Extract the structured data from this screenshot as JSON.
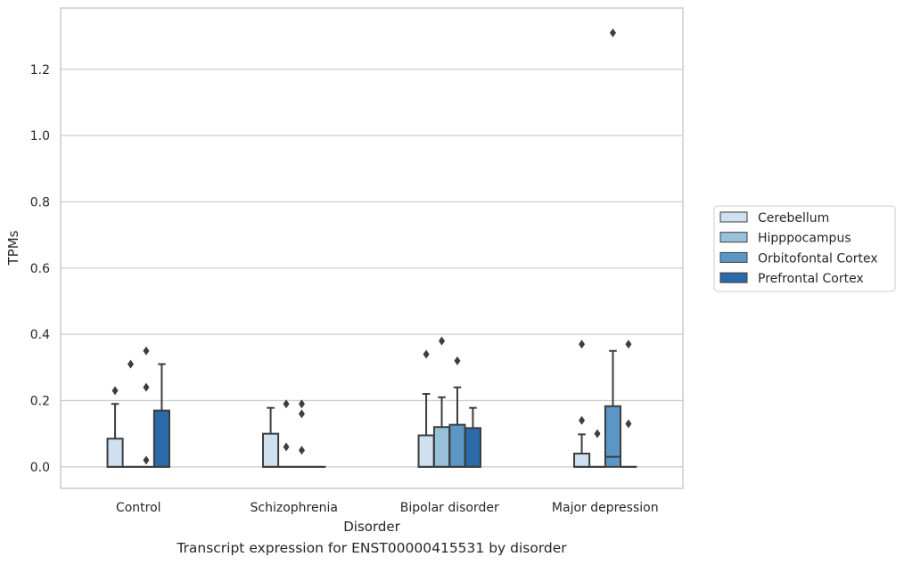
{
  "chart_data": {
    "type": "box",
    "title": "",
    "xlabel": "Disorder",
    "ylabel": "TPMs",
    "caption": "Transcript expression for ENST00000415531 by disorder",
    "categories": [
      "Control",
      "Schizophrenia",
      "Bipolar disorder",
      "Major depression"
    ],
    "ylim": [
      -0.065,
      1.385
    ],
    "yticks": [
      "0.0",
      "0.2",
      "0.4",
      "0.6",
      "0.8",
      "1.0",
      "1.2"
    ],
    "grid": "horizontal",
    "legend_position": "right",
    "series": [
      {
        "name": "Cerebellum",
        "color": "#cfe0f0",
        "boxes": [
          {
            "q1": 0,
            "median": 0,
            "q3": 0.085,
            "whisker_low": 0,
            "whisker_high": 0.19,
            "outliers": [
              0.23
            ]
          },
          {
            "q1": 0,
            "median": 0,
            "q3": 0.1,
            "whisker_low": 0,
            "whisker_high": 0.178,
            "outliers": []
          },
          {
            "q1": 0,
            "median": 0,
            "q3": 0.095,
            "whisker_low": 0,
            "whisker_high": 0.22,
            "outliers": [
              0.34
            ]
          },
          {
            "q1": 0,
            "median": 0,
            "q3": 0.04,
            "whisker_low": 0,
            "whisker_high": 0.098,
            "outliers": [
              0.14,
              0.37
            ]
          }
        ]
      },
      {
        "name": "Hipppocampus",
        "color": "#98c1dc",
        "boxes": [
          {
            "q1": 0,
            "median": 0,
            "q3": 0,
            "whisker_low": 0,
            "whisker_high": 0,
            "outliers": [
              0.31
            ]
          },
          {
            "q1": 0,
            "median": 0,
            "q3": 0,
            "whisker_low": 0,
            "whisker_high": 0,
            "outliers": [
              0.06,
              0.19
            ]
          },
          {
            "q1": 0,
            "median": 0,
            "q3": 0.12,
            "whisker_low": 0,
            "whisker_high": 0.21,
            "outliers": [
              0.38
            ]
          },
          {
            "q1": 0,
            "median": 0,
            "q3": 0,
            "whisker_low": 0,
            "whisker_high": 0,
            "outliers": [
              0.1
            ]
          }
        ]
      },
      {
        "name": "Orbitofontal Cortex",
        "color": "#5b97c6",
        "boxes": [
          {
            "q1": 0,
            "median": 0,
            "q3": 0,
            "whisker_low": 0,
            "whisker_high": 0,
            "outliers": [
              0.02,
              0.24,
              0.35
            ]
          },
          {
            "q1": 0,
            "median": 0,
            "q3": 0,
            "whisker_low": 0,
            "whisker_high": 0,
            "outliers": [
              0.05,
              0.16,
              0.19
            ]
          },
          {
            "q1": 0,
            "median": 0,
            "q3": 0.127,
            "whisker_low": 0,
            "whisker_high": 0.24,
            "outliers": [
              0.32
            ]
          },
          {
            "q1": 0,
            "median": 0.03,
            "q3": 0.183,
            "whisker_low": 0,
            "whisker_high": 0.35,
            "outliers": [
              1.31
            ]
          }
        ]
      },
      {
        "name": "Prefrontal Cortex",
        "color": "#2a6aa8",
        "boxes": [
          {
            "q1": 0,
            "median": 0,
            "q3": 0.17,
            "whisker_low": 0,
            "whisker_high": 0.31,
            "outliers": []
          },
          {
            "q1": 0,
            "median": 0,
            "q3": 0,
            "whisker_low": 0,
            "whisker_high": 0,
            "outliers": []
          },
          {
            "q1": 0,
            "median": 0,
            "q3": 0.117,
            "whisker_low": 0,
            "whisker_high": 0.178,
            "outliers": []
          },
          {
            "q1": 0,
            "median": 0,
            "q3": 0,
            "whisker_low": 0,
            "whisker_high": 0,
            "outliers": [
              0.13,
              0.37
            ]
          }
        ]
      }
    ]
  }
}
